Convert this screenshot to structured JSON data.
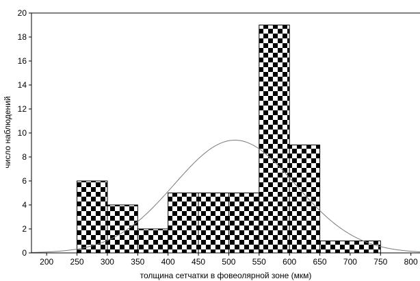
{
  "chart_data": {
    "type": "bar",
    "subtype": "histogram",
    "title": "",
    "xlabel": "толщина сетчатки в фовеолярной зоне (мкм)",
    "ylabel": "число наблюдений",
    "xlim": [
      175,
      815
    ],
    "ylim": [
      0,
      20
    ],
    "xticks": [
      200,
      250,
      300,
      350,
      400,
      450,
      500,
      550,
      600,
      650,
      700,
      750,
      800
    ],
    "yticks": [
      0,
      2,
      4,
      6,
      8,
      10,
      12,
      14,
      16,
      18,
      20
    ],
    "bins": [
      {
        "from": 250,
        "to": 300,
        "count": 6
      },
      {
        "from": 300,
        "to": 350,
        "count": 4
      },
      {
        "from": 350,
        "to": 400,
        "count": 2
      },
      {
        "from": 400,
        "to": 450,
        "count": 5
      },
      {
        "from": 450,
        "to": 500,
        "count": 5
      },
      {
        "from": 500,
        "to": 550,
        "count": 5
      },
      {
        "from": 550,
        "to": 600,
        "count": 19
      },
      {
        "from": 600,
        "to": 650,
        "count": 9
      },
      {
        "from": 650,
        "to": 750,
        "count": 1
      }
    ],
    "fit_curve": {
      "type": "normal",
      "mean": 510,
      "sd": 100,
      "peak": 9.4
    },
    "grid": false,
    "legend": "none",
    "bar_fill": "checkerboard",
    "colors": {
      "bar_dark": "#000000",
      "bar_light": "#ffffff",
      "bar_stroke": "#000000",
      "curve": "#7a7a7a",
      "axis": "#000000"
    }
  }
}
